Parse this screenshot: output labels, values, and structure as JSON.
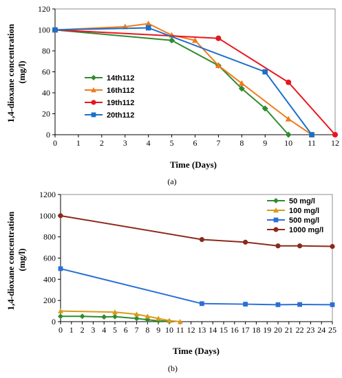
{
  "chart_data": [
    {
      "type": "line",
      "title": "",
      "xlabel": "Time (Days)",
      "ylabel": "1,4-dioxane concentration (mg/l)",
      "xlim": [
        0,
        12
      ],
      "ylim": [
        0,
        120
      ],
      "xticks": [
        0,
        1,
        2,
        3,
        4,
        5,
        6,
        7,
        8,
        9,
        10,
        11,
        12
      ],
      "yticks": [
        0,
        20,
        40,
        60,
        80,
        100,
        120
      ],
      "grid": false,
      "legend_position": "left",
      "caption": "(a)",
      "series": [
        {
          "name": "14th112",
          "color": "#2e8b2e",
          "marker": "diamond",
          "x": [
            0,
            5,
            7,
            8,
            9,
            10
          ],
          "y": [
            100,
            90,
            66,
            44,
            25,
            0
          ]
        },
        {
          "name": "16th112",
          "color": "#f07a1a",
          "marker": "triangle",
          "x": [
            0,
            3,
            4,
            5,
            6,
            7,
            8,
            10,
            11
          ],
          "y": [
            100,
            103,
            106,
            95,
            90,
            66,
            49,
            15,
            0
          ]
        },
        {
          "name": "19th112",
          "color": "#e8161e",
          "marker": "circle",
          "x": [
            0,
            7,
            10,
            12
          ],
          "y": [
            100,
            92,
            50,
            0
          ]
        },
        {
          "name": "20th112",
          "color": "#1d6fc8",
          "marker": "square",
          "x": [
            0,
            4,
            9,
            11
          ],
          "y": [
            100,
            102,
            60,
            0
          ]
        }
      ]
    },
    {
      "type": "line",
      "title": "",
      "xlabel": "Time (Days)",
      "ylabel": "1,4-dioxane concentration (mg/l)",
      "xlim": [
        0,
        25
      ],
      "ylim": [
        0,
        1200
      ],
      "xticks": [
        0,
        1,
        2,
        3,
        4,
        5,
        6,
        7,
        8,
        9,
        10,
        11,
        12,
        13,
        14,
        15,
        16,
        17,
        18,
        19,
        20,
        21,
        22,
        23,
        24,
        25
      ],
      "yticks": [
        0,
        200,
        400,
        600,
        800,
        1000,
        1200
      ],
      "grid": false,
      "legend_position": "top-right",
      "caption": "(b)",
      "series": [
        {
          "name": "50 mg/l",
          "color": "#2e8b2e",
          "marker": "diamond",
          "x": [
            0,
            2,
            4,
            5,
            7,
            8,
            9,
            10
          ],
          "y": [
            50,
            50,
            45,
            47,
            30,
            18,
            8,
            3
          ]
        },
        {
          "name": "100 mg/l",
          "color": "#d99a1a",
          "marker": "triangle",
          "x": [
            0,
            5,
            7,
            8,
            9,
            10,
            11
          ],
          "y": [
            100,
            90,
            70,
            50,
            30,
            10,
            0
          ]
        },
        {
          "name": "500 mg/l",
          "color": "#2a6fd6",
          "marker": "square",
          "x": [
            0,
            13,
            17,
            20,
            22,
            25
          ],
          "y": [
            500,
            170,
            165,
            160,
            162,
            160
          ]
        },
        {
          "name": "1000 mg/l",
          "color": "#8b2a1a",
          "marker": "circle",
          "x": [
            0,
            13,
            17,
            20,
            22,
            25
          ],
          "y": [
            1000,
            775,
            750,
            715,
            715,
            710
          ]
        }
      ]
    }
  ]
}
